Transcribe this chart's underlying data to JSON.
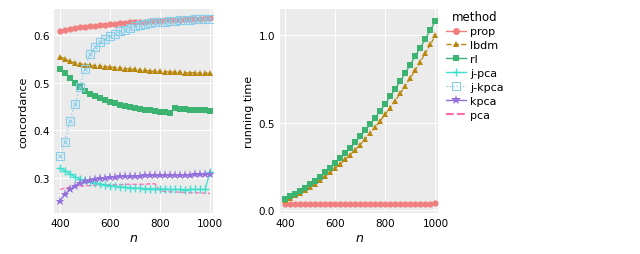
{
  "n_values": [
    400,
    420,
    440,
    460,
    480,
    500,
    520,
    540,
    560,
    580,
    600,
    620,
    640,
    660,
    680,
    700,
    720,
    740,
    760,
    780,
    800,
    820,
    840,
    860,
    880,
    900,
    920,
    940,
    960,
    980,
    1000
  ],
  "concordance": {
    "prop": [
      0.61,
      0.612,
      0.614,
      0.616,
      0.617,
      0.618,
      0.619,
      0.62,
      0.621,
      0.622,
      0.623,
      0.624,
      0.625,
      0.626,
      0.627,
      0.628,
      0.628,
      0.629,
      0.63,
      0.631,
      0.631,
      0.632,
      0.632,
      0.633,
      0.633,
      0.634,
      0.634,
      0.635,
      0.635,
      0.636,
      0.636
    ],
    "lbdm": [
      0.555,
      0.55,
      0.545,
      0.542,
      0.54,
      0.538,
      0.537,
      0.536,
      0.535,
      0.534,
      0.533,
      0.532,
      0.531,
      0.53,
      0.529,
      0.528,
      0.527,
      0.526,
      0.525,
      0.524,
      0.524,
      0.523,
      0.523,
      0.522,
      0.522,
      0.521,
      0.521,
      0.521,
      0.52,
      0.52,
      0.52
    ],
    "rl": [
      0.53,
      0.52,
      0.51,
      0.5,
      0.49,
      0.483,
      0.477,
      0.472,
      0.468,
      0.464,
      0.46,
      0.457,
      0.454,
      0.451,
      0.449,
      0.447,
      0.445,
      0.443,
      0.442,
      0.44,
      0.439,
      0.438,
      0.437,
      0.446,
      0.445,
      0.444,
      0.443,
      0.443,
      0.442,
      0.442,
      0.441
    ],
    "jpca": [
      0.32,
      0.315,
      0.308,
      0.302,
      0.298,
      0.294,
      0.291,
      0.289,
      0.287,
      0.285,
      0.283,
      0.282,
      0.281,
      0.28,
      0.279,
      0.278,
      0.278,
      0.277,
      0.277,
      0.276,
      0.276,
      0.276,
      0.275,
      0.275,
      0.275,
      0.274,
      0.275,
      0.275,
      0.275,
      0.275,
      0.312
    ],
    "jkpca": [
      0.345,
      0.375,
      0.42,
      0.455,
      0.49,
      0.53,
      0.56,
      0.575,
      0.585,
      0.592,
      0.598,
      0.603,
      0.608,
      0.612,
      0.616,
      0.619,
      0.621,
      0.623,
      0.625,
      0.627,
      0.628,
      0.629,
      0.63,
      0.631,
      0.632,
      0.633,
      0.633,
      0.634,
      0.634,
      0.635,
      0.635
    ],
    "kpca": [
      0.25,
      0.265,
      0.275,
      0.283,
      0.288,
      0.292,
      0.295,
      0.297,
      0.299,
      0.3,
      0.301,
      0.302,
      0.303,
      0.303,
      0.304,
      0.304,
      0.304,
      0.305,
      0.305,
      0.305,
      0.305,
      0.306,
      0.306,
      0.306,
      0.306,
      0.306,
      0.306,
      0.307,
      0.307,
      0.307,
      0.307
    ],
    "pca": [
      0.275,
      0.278,
      0.28,
      0.281,
      0.282,
      0.283,
      0.283,
      0.284,
      0.284,
      0.284,
      0.285,
      0.285,
      0.285,
      0.286,
      0.286,
      0.286,
      0.286,
      0.286,
      0.287,
      0.287,
      0.272,
      0.271,
      0.27,
      0.27,
      0.269,
      0.269,
      0.268,
      0.268,
      0.268,
      0.267,
      0.267
    ]
  },
  "runtime": {
    "prop": [
      0.03,
      0.03,
      0.03,
      0.03,
      0.03,
      0.03,
      0.03,
      0.03,
      0.03,
      0.03,
      0.03,
      0.03,
      0.03,
      0.03,
      0.03,
      0.03,
      0.03,
      0.03,
      0.03,
      0.03,
      0.03,
      0.03,
      0.03,
      0.03,
      0.03,
      0.03,
      0.03,
      0.03,
      0.03,
      0.03,
      0.04
    ],
    "lbdm": [
      0.055,
      0.068,
      0.082,
      0.096,
      0.112,
      0.13,
      0.15,
      0.17,
      0.192,
      0.215,
      0.238,
      0.262,
      0.288,
      0.315,
      0.344,
      0.374,
      0.406,
      0.44,
      0.474,
      0.51,
      0.548,
      0.586,
      0.626,
      0.668,
      0.712,
      0.756,
      0.802,
      0.85,
      0.898,
      0.948,
      1.0
    ],
    "rl": [
      0.062,
      0.076,
      0.092,
      0.108,
      0.126,
      0.146,
      0.167,
      0.19,
      0.215,
      0.24,
      0.267,
      0.295,
      0.324,
      0.354,
      0.386,
      0.42,
      0.455,
      0.49,
      0.528,
      0.568,
      0.608,
      0.65,
      0.694,
      0.738,
      0.785,
      0.832,
      0.882,
      0.93,
      0.98,
      1.03,
      1.085
    ]
  },
  "colors": {
    "prop": "#F08080",
    "lbdm": "#B8860B",
    "rl": "#3CB371",
    "jpca": "#40E0D0",
    "jkpca": "#87CEEB",
    "kpca": "#9370DB",
    "pca": "#FF69B4"
  },
  "bg_color": "#EBEBEB",
  "grid_color": "#FFFFFF",
  "ylabel_left": "concordance",
  "ylabel_right": "running time",
  "xlabel": "n",
  "ylim_left": [
    0.225,
    0.655
  ],
  "ylim_right": [
    -0.02,
    1.15
  ],
  "yticks_left": [
    0.3,
    0.4,
    0.5,
    0.6
  ],
  "yticks_right": [
    0.0,
    0.5,
    1.0
  ],
  "xticks": [
    400,
    600,
    800,
    1000
  ],
  "xlim": [
    378,
    1012
  ]
}
